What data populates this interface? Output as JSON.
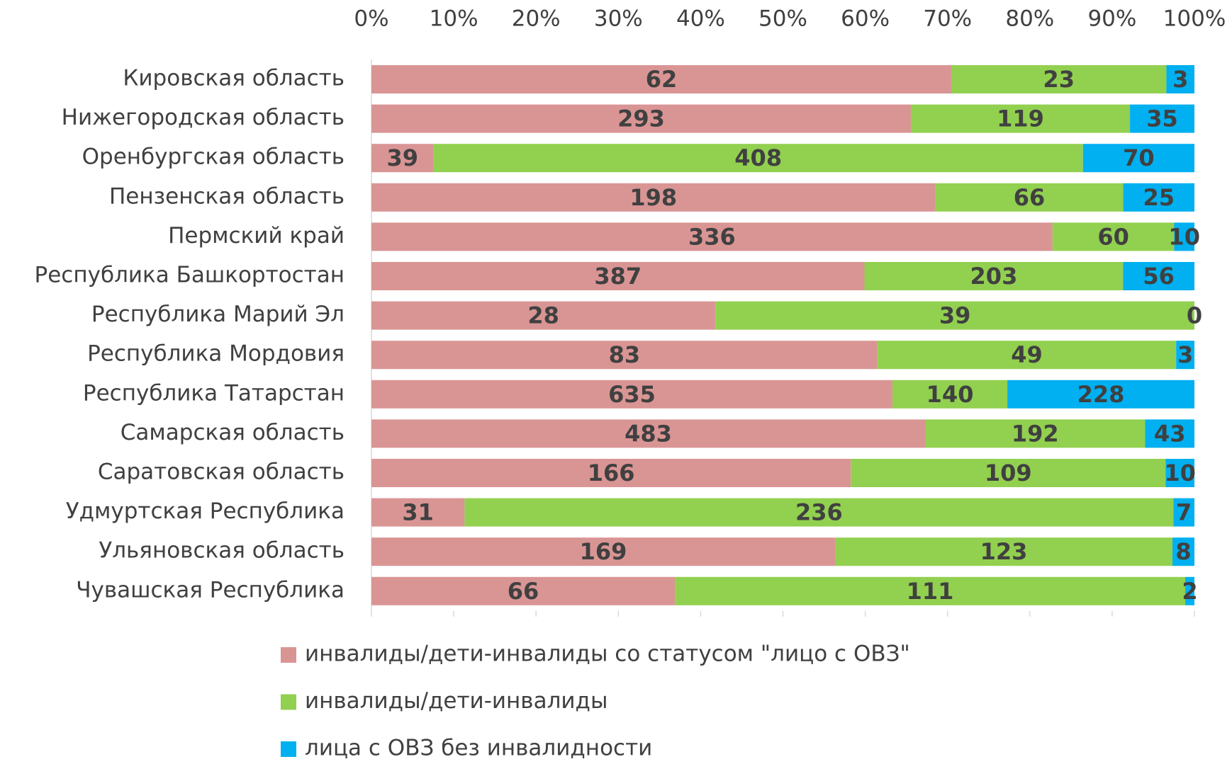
{
  "chart_data": {
    "type": "bar",
    "orientation": "horizontal",
    "stacking": "percent",
    "categories": [
      "Кировская область",
      "Нижегородская область",
      "Оренбургская область",
      "Пензенская область",
      "Пермский край",
      "Республика Башкортостан",
      "Республика Марий Эл",
      "Республика Мордовия",
      "Республика Татарстан",
      "Самарская область",
      "Саратовская область",
      "Удмуртская Республика",
      "Ульяновская область",
      "Чувашская Республика"
    ],
    "series": [
      {
        "name": "инвалиды/дети-инвалиды со статусом \"лицо с ОВЗ\"",
        "color": "#d99594",
        "values": [
          62,
          293,
          39,
          198,
          336,
          387,
          28,
          83,
          635,
          483,
          166,
          31,
          169,
          66
        ]
      },
      {
        "name": "инвалиды/дети-инвалиды",
        "color": "#92d050",
        "values": [
          23,
          119,
          408,
          66,
          60,
          203,
          39,
          49,
          140,
          192,
          109,
          236,
          123,
          111
        ]
      },
      {
        "name": "лица с ОВЗ без инвалидности",
        "color": "#00b0f0",
        "values": [
          3,
          35,
          70,
          25,
          10,
          56,
          0,
          3,
          228,
          43,
          10,
          7,
          8,
          2
        ]
      }
    ],
    "xlim": [
      0,
      100
    ],
    "xticks": [
      {
        "value": 0,
        "label": "0%"
      },
      {
        "value": 10,
        "label": "10%"
      },
      {
        "value": 20,
        "label": "20%"
      },
      {
        "value": 30,
        "label": "30%"
      },
      {
        "value": 40,
        "label": "40%"
      },
      {
        "value": 50,
        "label": "50%"
      },
      {
        "value": 60,
        "label": "60%"
      },
      {
        "value": 70,
        "label": "70%"
      },
      {
        "value": 80,
        "label": "80%"
      },
      {
        "value": 90,
        "label": "90%"
      },
      {
        "value": 100,
        "label": "100%"
      }
    ],
    "legend": "bottom"
  }
}
